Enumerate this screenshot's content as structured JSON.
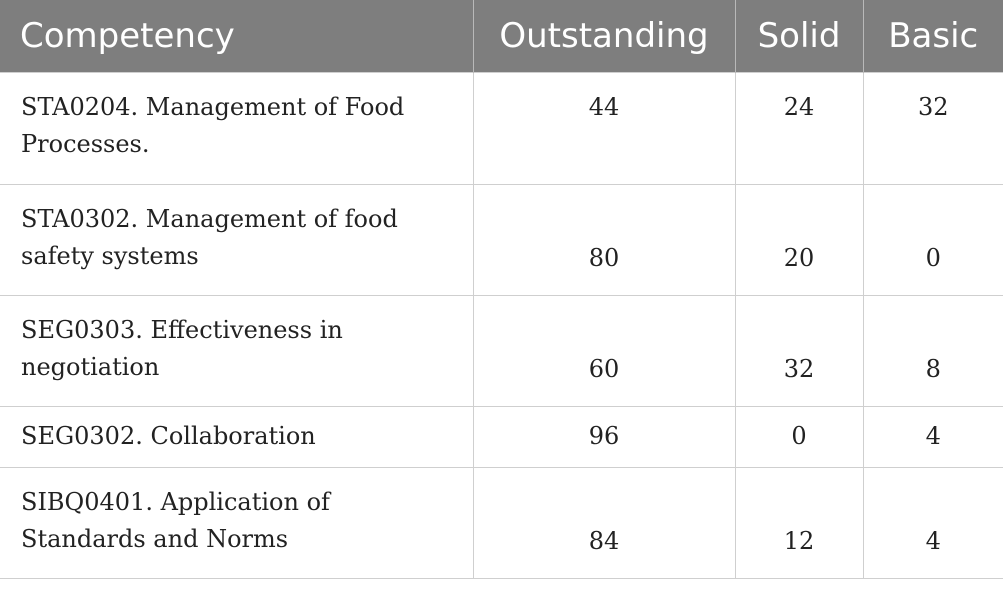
{
  "table": {
    "headers": [
      "Competency",
      "Outstanding",
      "Solid",
      "Basic"
    ],
    "rows": [
      {
        "competency": "STA0204. Management of Food Processes.",
        "outstanding": "44",
        "solid": "24",
        "basic": "32"
      },
      {
        "competency": "STA0302. Management of food safety systems",
        "outstanding": "80",
        "solid": "20",
        "basic": "0"
      },
      {
        "competency": "SEG0303. Effectiveness in negotiation",
        "outstanding": "60",
        "solid": "32",
        "basic": "8"
      },
      {
        "competency": "SEG0302. Collaboration",
        "outstanding": "96",
        "solid": "0",
        "basic": "4"
      },
      {
        "competency": "SIBQ0401. Application of Standards and Norms",
        "outstanding": "84",
        "solid": "12",
        "basic": "4"
      }
    ]
  },
  "colors": {
    "header_bg": "#7e7e7e",
    "header_text": "#ffffff",
    "border": "#cfcfcf"
  }
}
